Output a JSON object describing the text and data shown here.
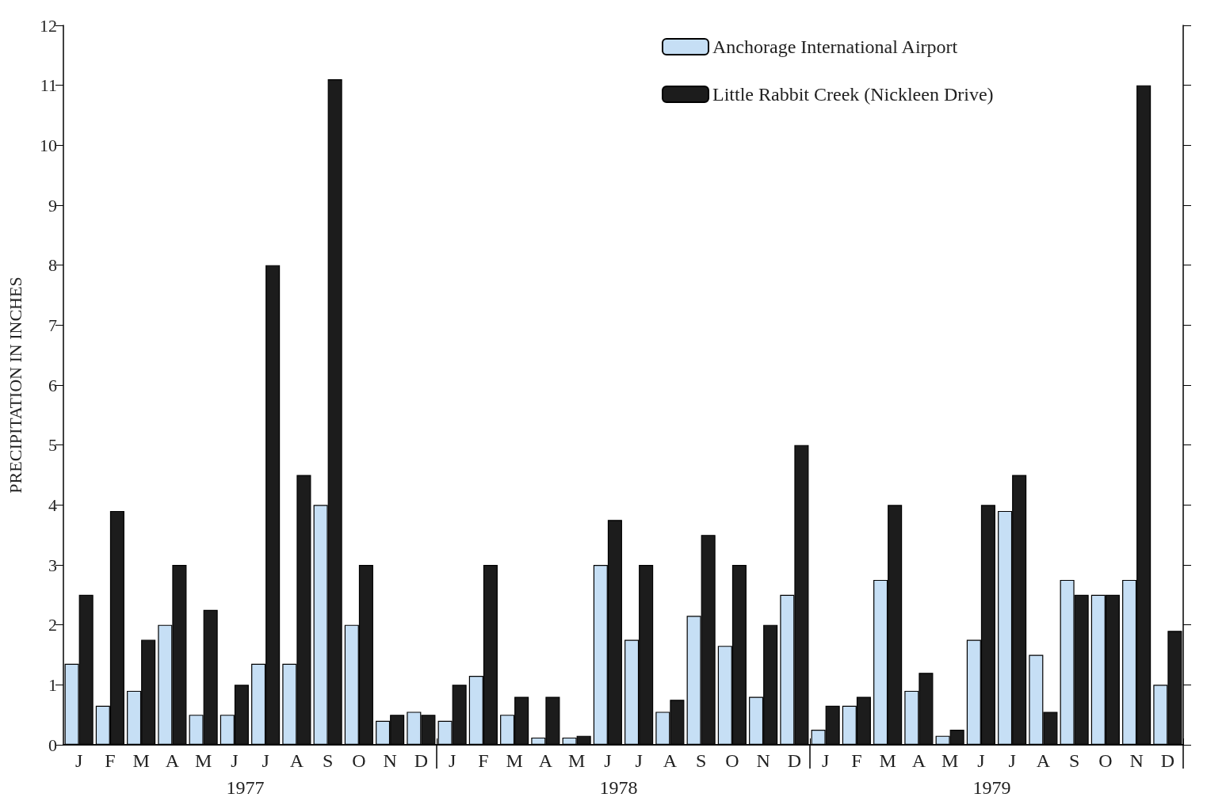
{
  "chart_data": {
    "type": "bar",
    "ylabel": "PRECIPITATION IN INCHES",
    "categories": [
      "J",
      "F",
      "M",
      "A",
      "M",
      "J",
      "J",
      "A",
      "S",
      "O",
      "N",
      "D",
      "J",
      "F",
      "M",
      "A",
      "M",
      "J",
      "J",
      "A",
      "S",
      "O",
      "N",
      "D",
      "J",
      "F",
      "M",
      "A",
      "M",
      "J",
      "J",
      "A",
      "S",
      "O",
      "N",
      "D"
    ],
    "series": [
      {
        "name": "Anchorage International Airport",
        "color": "#c6dff5",
        "values": [
          1.35,
          0.65,
          0.9,
          2.0,
          0.5,
          0.5,
          1.35,
          1.35,
          4.0,
          2.0,
          0.4,
          0.55,
          0.4,
          1.15,
          0.5,
          0.12,
          0.12,
          3.0,
          1.75,
          0.55,
          2.15,
          1.65,
          0.8,
          2.5,
          0.25,
          0.65,
          2.75,
          0.9,
          0.15,
          1.75,
          3.9,
          1.5,
          2.75,
          2.5,
          2.75,
          1.0
        ]
      },
      {
        "name": "Little Rabbit Creek (Nickleen Drive)",
        "color": "#1c1c1c",
        "values": [
          2.5,
          3.9,
          1.75,
          3.0,
          2.25,
          1.0,
          8.0,
          4.5,
          11.1,
          3.0,
          0.5,
          0.5,
          1.0,
          3.0,
          0.8,
          0.8,
          0.15,
          3.75,
          3.0,
          0.75,
          3.5,
          3.0,
          2.0,
          5.0,
          0.65,
          0.8,
          4.0,
          1.2,
          0.25,
          4.0,
          4.5,
          0.55,
          2.5,
          2.5,
          11.0,
          1.9
        ]
      }
    ],
    "annotations": [
      "1977",
      "1978",
      "1979"
    ],
    "ylim": [
      0,
      12
    ],
    "yticks": [
      0,
      1,
      2,
      3,
      4,
      5,
      6,
      7,
      8,
      9,
      10,
      11,
      12
    ],
    "grid": false,
    "legend": "top right"
  }
}
